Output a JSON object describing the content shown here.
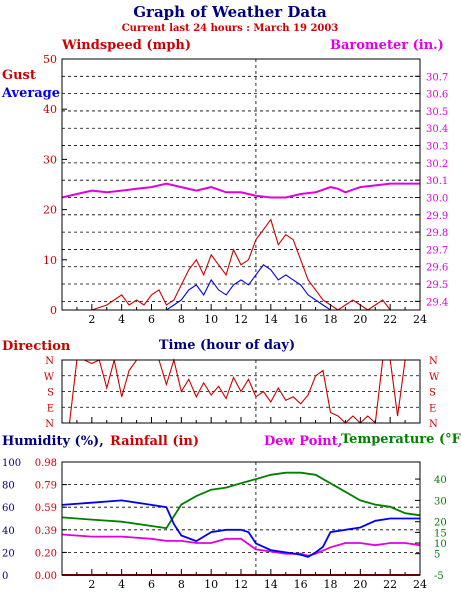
{
  "header": {
    "title": "Graph of Weather Data",
    "subtitle": "Current last 24 hours : March 19 2003"
  },
  "colors": {
    "navy": "#00007f",
    "red": "#cc0000",
    "magenta": "#e000e0",
    "green": "#007f00",
    "blue": "#0000ee"
  },
  "chart_data": [
    {
      "id": "wind",
      "type": "line",
      "labels": {
        "left_title": "Windspeed (mph)",
        "right_title": "Barometer (in.)",
        "gust": "Gust",
        "average": "Average",
        "xlabel": "Time (hour of day)"
      },
      "x_ticks": [
        "2",
        "4",
        "6",
        "8",
        "10",
        "12",
        "14",
        "16",
        "18",
        "20",
        "22",
        "24"
      ],
      "y_left_ticks": [
        "0",
        "10",
        "20",
        "30",
        "40",
        "50"
      ],
      "y_right_ticks": [
        "29.4",
        "29.5",
        "29.6",
        "29.7",
        "29.8",
        "29.9",
        "30.0",
        "30.1",
        "30.2",
        "30.3",
        "30.4",
        "30.5",
        "30.6",
        "30.7"
      ],
      "ylim_left": [
        0,
        50
      ],
      "ylim_right": [
        29.35,
        30.8
      ],
      "xlim": [
        0,
        24
      ],
      "current_time_marker": 13,
      "series": [
        {
          "name": "Gust",
          "color": "#cc0000",
          "x": [
            0,
            1,
            2,
            3,
            3.5,
            4,
            4.5,
            5,
            5.5,
            6,
            6.5,
            7,
            7.5,
            8,
            8.5,
            9,
            9.5,
            10,
            10.5,
            11,
            11.5,
            12,
            12.5,
            13,
            13.5,
            14,
            14.5,
            15,
            15.5,
            16,
            16.5,
            17,
            17.5,
            18,
            18.5,
            19,
            19.5,
            20,
            20.5,
            21,
            21.5,
            22,
            22.5,
            23,
            24
          ],
          "y": [
            0,
            0,
            0,
            1,
            2,
            3,
            1,
            2,
            1,
            3,
            4,
            1,
            2,
            5,
            8,
            10,
            7,
            11,
            9,
            7,
            12,
            9,
            10,
            14,
            16,
            18,
            13,
            15,
            14,
            10,
            6,
            4,
            2,
            1,
            0,
            1,
            2,
            1,
            0,
            1,
            2,
            0,
            0,
            0,
            0
          ]
        },
        {
          "name": "Average",
          "color": "#0000ee",
          "x": [
            0,
            6,
            7,
            7.5,
            8,
            8.5,
            9,
            9.5,
            10,
            10.5,
            11,
            11.5,
            12,
            12.5,
            13,
            13.5,
            14,
            14.5,
            15,
            15.5,
            16,
            16.5,
            17,
            17.5,
            18,
            24
          ],
          "y": [
            0,
            0,
            0,
            1,
            2,
            4,
            5,
            3,
            6,
            4,
            3,
            5,
            6,
            5,
            7,
            9,
            8,
            6,
            7,
            6,
            5,
            3,
            2,
            1,
            0,
            0
          ]
        },
        {
          "name": "Barometer",
          "color": "#e000e0",
          "x": [
            0,
            1,
            2,
            3,
            4,
            5,
            6,
            7,
            8,
            9,
            10,
            11,
            12,
            13,
            14,
            15,
            16,
            17,
            18,
            18.5,
            19,
            20,
            21,
            22,
            23,
            24
          ],
          "y": [
            30.0,
            30.02,
            30.04,
            30.03,
            30.04,
            30.05,
            30.06,
            30.08,
            30.06,
            30.04,
            30.06,
            30.03,
            30.03,
            30.01,
            30.0,
            30.0,
            30.02,
            30.03,
            30.06,
            30.05,
            30.03,
            30.06,
            30.07,
            30.08,
            30.08,
            30.08
          ]
        }
      ]
    },
    {
      "id": "direction",
      "type": "line",
      "labels": {
        "title": "Direction"
      },
      "y_ticks": [
        "N",
        "S",
        "E",
        "W",
        "N"
      ],
      "y_ticks_top_down": [
        "N",
        "W",
        "S",
        "E",
        "N"
      ],
      "ylim": [
        0,
        360
      ],
      "xlim": [
        0,
        24
      ],
      "current_time_marker": 13,
      "series": [
        {
          "name": "",
          "color": "#cc0000",
          "x": [
            0,
            0.5,
            1,
            1.5,
            2,
            2.5,
            3,
            3.5,
            4,
            4.5,
            5,
            5.5,
            6,
            6.5,
            7,
            7.5,
            8,
            8.5,
            9,
            9.5,
            10,
            10.5,
            11,
            11.5,
            12,
            12.5,
            13,
            13.5,
            14,
            14.5,
            15,
            15.5,
            16,
            16.5,
            17,
            17.5,
            18,
            18.5,
            19,
            19.5,
            20,
            20.5,
            21,
            21.5,
            22,
            22.5,
            23,
            23.5,
            24
          ],
          "y": [
            0,
            0,
            360,
            360,
            340,
            360,
            200,
            360,
            150,
            300,
            360,
            360,
            360,
            360,
            220,
            360,
            180,
            250,
            150,
            230,
            160,
            210,
            140,
            260,
            180,
            250,
            150,
            180,
            120,
            200,
            130,
            150,
            110,
            160,
            270,
            300,
            60,
            40,
            0,
            40,
            0,
            40,
            0,
            360,
            360,
            40,
            360,
            360,
            360
          ]
        }
      ]
    },
    {
      "id": "humidity",
      "type": "line",
      "labels": {
        "humidity": "Humidity (%),",
        "rainfall": "Rainfall (in)",
        "dewpoint": "Dew Point,",
        "temperature": "Temperature (°F)"
      },
      "x_ticks": [
        "2",
        "4",
        "6",
        "8",
        "10",
        "12",
        "14",
        "16",
        "18",
        "20",
        "22",
        "24"
      ],
      "humidity_ticks": [
        "0",
        "20",
        "40",
        "60",
        "80",
        "100"
      ],
      "rain_ticks": [
        "0.00",
        "0.20",
        "0.39",
        "0.59",
        "0.79",
        "0.98"
      ],
      "temp_ticks": [
        "-5",
        "5",
        "10",
        "15",
        "20",
        "30",
        "40"
      ],
      "ylim_humidity": [
        0,
        100
      ],
      "ylim_temp": [
        -5,
        48
      ],
      "xlim": [
        0,
        24
      ],
      "current_time_marker": 13,
      "series": [
        {
          "name": "Humidity",
          "color": "#0000ee",
          "x": [
            0,
            2,
            4,
            6,
            7,
            7.5,
            8,
            9,
            10,
            11,
            12,
            12.5,
            13,
            14,
            15,
            16,
            16.5,
            17,
            17.5,
            18,
            19,
            20,
            21,
            22,
            23,
            24
          ],
          "y": [
            62,
            64,
            66,
            62,
            60,
            45,
            35,
            30,
            38,
            40,
            40,
            38,
            28,
            22,
            20,
            18,
            16,
            20,
            25,
            38,
            40,
            42,
            48,
            50,
            50,
            50
          ]
        },
        {
          "name": "Dew Point",
          "color": "#e000e0",
          "x": [
            0,
            2,
            4,
            6,
            7,
            8,
            9,
            10,
            11,
            12,
            13,
            14,
            15,
            16,
            16.5,
            17,
            18,
            19,
            20,
            21,
            22,
            23,
            24
          ],
          "y": [
            14,
            13,
            13,
            12,
            11,
            11,
            10,
            10,
            12,
            12,
            7,
            6,
            5,
            5,
            4,
            5,
            8,
            10,
            10,
            9,
            10,
            10,
            9
          ]
        },
        {
          "name": "Temperature",
          "color": "#007f00",
          "x": [
            0,
            2,
            4,
            6,
            7,
            8,
            9,
            10,
            11,
            12,
            13,
            14,
            15,
            16,
            17,
            18,
            19,
            20,
            21,
            22,
            23,
            24
          ],
          "y": [
            22,
            21,
            20,
            18,
            17,
            28,
            32,
            35,
            36,
            38,
            40,
            42,
            43,
            43,
            42,
            38,
            34,
            30,
            28,
            27,
            24,
            23
          ]
        },
        {
          "name": "Rainfall",
          "color": "#cc0000",
          "x": [
            0,
            24
          ],
          "y": [
            0,
            0
          ]
        }
      ]
    }
  ]
}
